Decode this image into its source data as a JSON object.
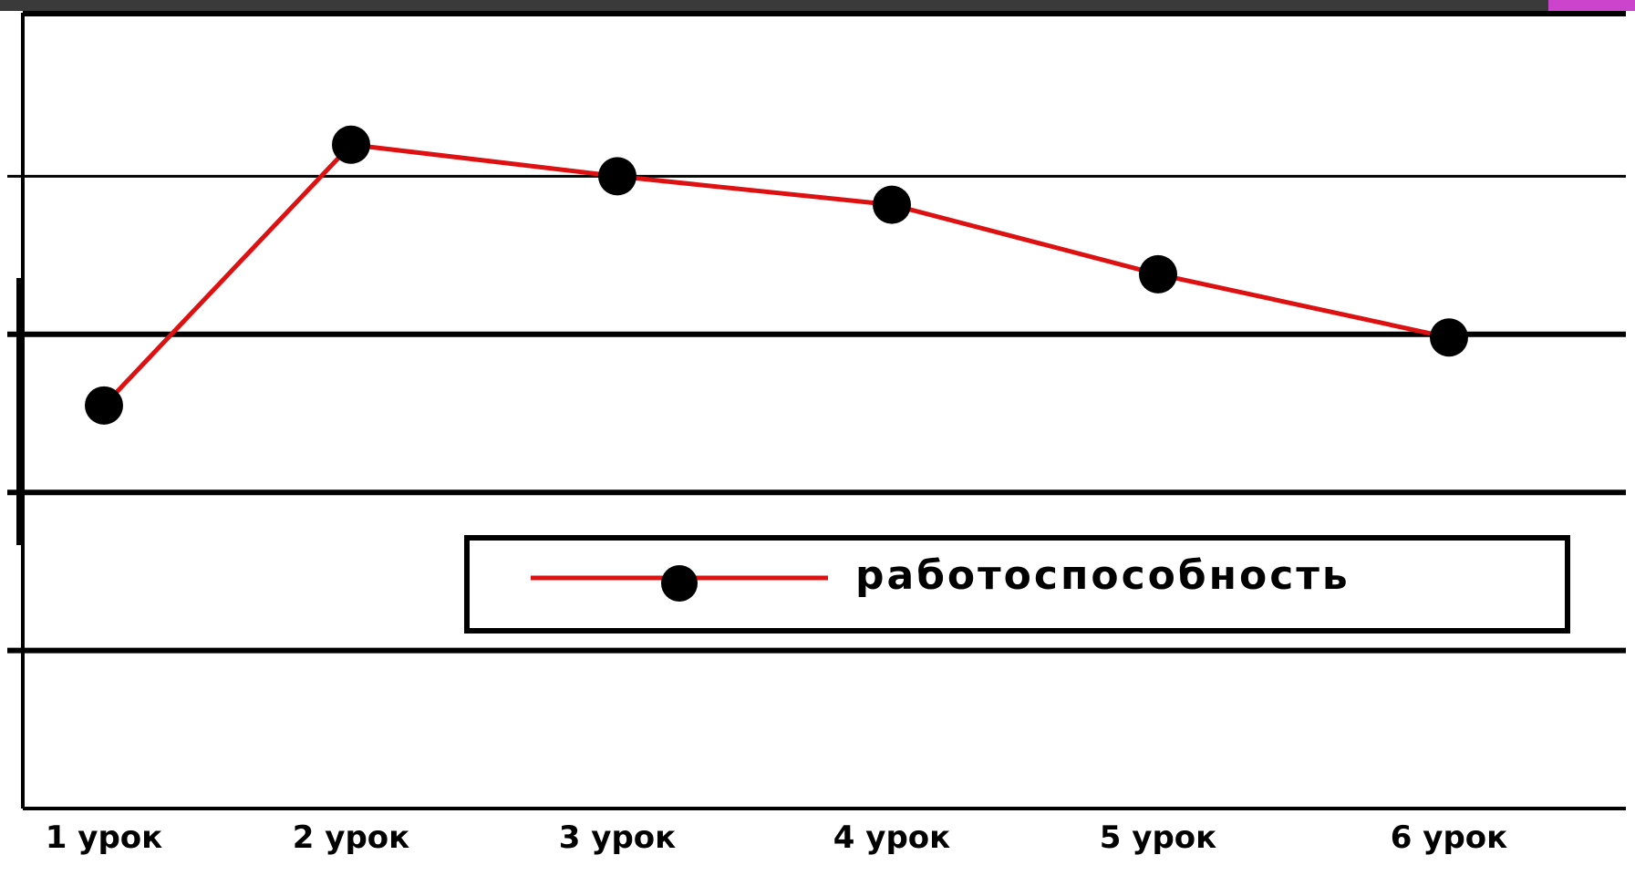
{
  "chart_data": {
    "type": "line",
    "categories": [
      "1 урок",
      "2 урок",
      "3 урок",
      "4 урок",
      "5 урок",
      "6 урок"
    ],
    "series": [
      {
        "name": "работоспособность",
        "values": [
          2.55,
          4.2,
          4.0,
          3.82,
          3.38,
          2.98
        ]
      }
    ],
    "ylim": [
      0,
      5
    ],
    "gridlines": [
      1,
      2,
      3,
      4
    ],
    "legend_position": "center-right",
    "colors": {
      "line": "#dd1111",
      "marker": "#000000",
      "grid": "#000000",
      "axis": "#000000"
    },
    "title": "",
    "xlabel": "",
    "ylabel": ""
  }
}
